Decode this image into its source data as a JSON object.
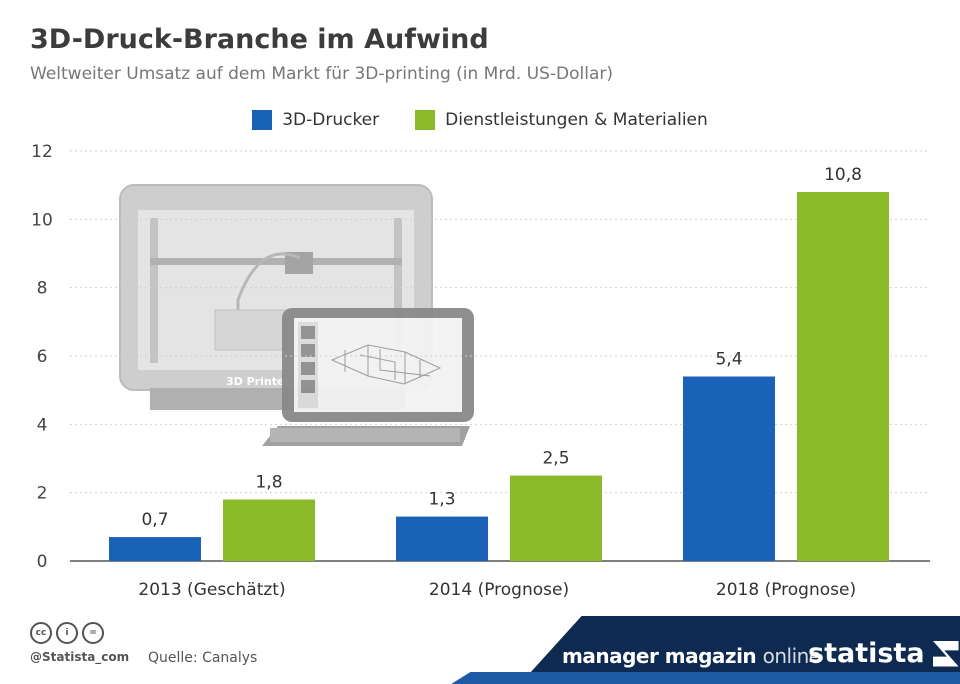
{
  "header": {
    "title": "3D-Druck-Branche im Aufwind",
    "subtitle": "Weltweiter Umsatz auf dem Markt für 3D-printing (in Mrd. US-Dollar)"
  },
  "chart_data": {
    "type": "bar",
    "title": "3D-Druck-Branche im Aufwind",
    "subtitle": "Weltweiter Umsatz auf dem Markt für 3D-printing (in Mrd. US-Dollar)",
    "categories": [
      "2013 (Geschätzt)",
      "2014 (Prognose)",
      "2018 (Prognose)"
    ],
    "series": [
      {
        "name": "3D-Drucker",
        "values": [
          0.7,
          1.3,
          5.4
        ],
        "labels": [
          "0,7",
          "1,3",
          "5,4"
        ],
        "color": "#1a62b8"
      },
      {
        "name": "Dienstleistungen & Materialien",
        "values": [
          1.8,
          2.5,
          10.8
        ],
        "labels": [
          "1,8",
          "2,5",
          "10,8"
        ],
        "color": "#8aba2a"
      }
    ],
    "ylim": [
      0,
      12
    ],
    "yticks": [
      0,
      2,
      4,
      6,
      8,
      10,
      12
    ],
    "xlabel": "",
    "ylabel": "",
    "grid": true,
    "legend": "top-center"
  },
  "illustration": {
    "printer_label": "3D Printer"
  },
  "footer": {
    "cc_icons": [
      "cc-icon",
      "by-icon",
      "nd-icon"
    ],
    "cc_texts": [
      "cc",
      "i",
      "="
    ],
    "credit": "@Statista_com",
    "source": "Quelle: Canalys",
    "partner_bold": "manager magazin",
    "partner_light": "online",
    "brand": "statista"
  }
}
